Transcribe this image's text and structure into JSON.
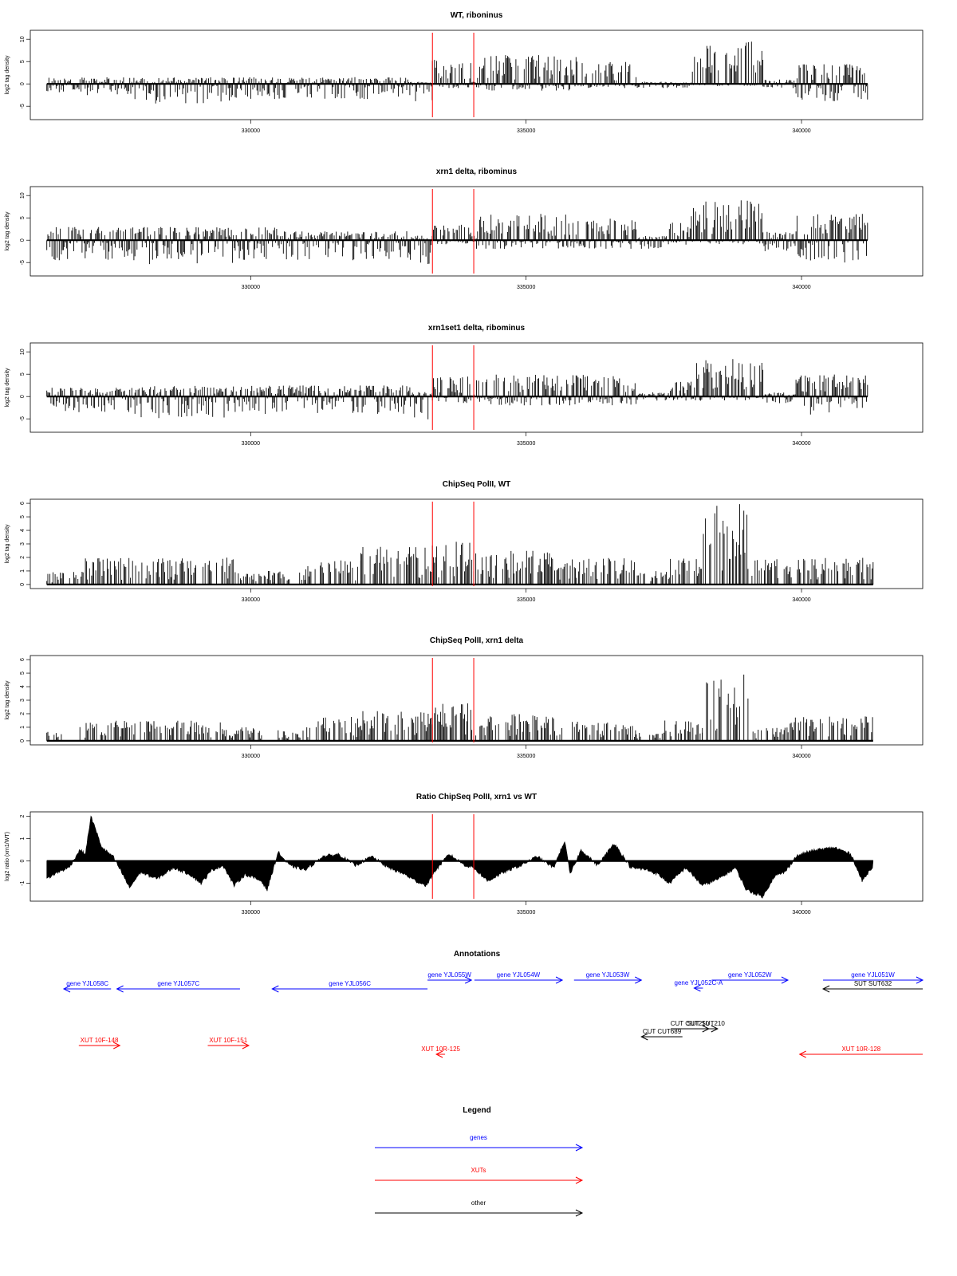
{
  "chart_data": [
    {
      "type": "bar",
      "title": "WT, riboninus",
      "ylabel": "log2 tag density",
      "ylim": [
        -8,
        12
      ],
      "yticks": [
        -5,
        0,
        5,
        10
      ],
      "xlim": [
        326300,
        341800
      ],
      "xticks": [
        330000,
        335000,
        340000
      ],
      "markers": [
        333300,
        334050
      ],
      "profile": [
        {
          "x": [
            326300,
            327900
          ],
          "lo": -2.5,
          "hi": 1.5
        },
        {
          "x": [
            327900,
            329700
          ],
          "lo": -4.5,
          "hi": 1.5
        },
        {
          "x": [
            329700,
            330500
          ],
          "lo": -3.5,
          "hi": 1.5
        },
        {
          "x": [
            330500,
            332900
          ],
          "lo": -3.5,
          "hi": 1.5
        },
        {
          "x": [
            332900,
            333300
          ],
          "lo": -4.0,
          "hi": 0.5
        },
        {
          "x": [
            333300,
            334000
          ],
          "lo": -1.0,
          "hi": 5.5
        },
        {
          "x": [
            334000,
            334100
          ],
          "lo": -0.5,
          "hi": 0.5
        },
        {
          "x": [
            334100,
            336000
          ],
          "lo": -1.5,
          "hi": 6.5
        },
        {
          "x": [
            336000,
            337000
          ],
          "lo": -1.0,
          "hi": 5.0
        },
        {
          "x": [
            337000,
            338000
          ],
          "lo": -1.0,
          "hi": 0.5
        },
        {
          "x": [
            338000,
            339300
          ],
          "lo": -0.5,
          "hi": 9.5
        },
        {
          "x": [
            339300,
            339900
          ],
          "lo": -1.0,
          "hi": 1.0
        },
        {
          "x": [
            339900,
            341200
          ],
          "lo": -4.0,
          "hi": 4.5
        }
      ]
    },
    {
      "type": "bar",
      "title": "xrn1 delta, ribominus",
      "ylabel": "log2 tag density",
      "ylim": [
        -8,
        12
      ],
      "yticks": [
        -5,
        0,
        5,
        10
      ],
      "xlim": [
        326300,
        341800
      ],
      "xticks": [
        330000,
        335000,
        340000
      ],
      "markers": [
        333300,
        334050
      ],
      "profile": [
        {
          "x": [
            326300,
            327900
          ],
          "lo": -4.5,
          "hi": 3.0
        },
        {
          "x": [
            327900,
            329700
          ],
          "lo": -5.5,
          "hi": 3.0
        },
        {
          "x": [
            329700,
            330500
          ],
          "lo": -4.5,
          "hi": 3.0
        },
        {
          "x": [
            330500,
            332900
          ],
          "lo": -4.5,
          "hi": 2.0
        },
        {
          "x": [
            332900,
            333300
          ],
          "lo": -5.5,
          "hi": 1.0
        },
        {
          "x": [
            333300,
            334000
          ],
          "lo": -1.0,
          "hi": 3.5
        },
        {
          "x": [
            334000,
            334100
          ],
          "lo": -0.5,
          "hi": 1.0
        },
        {
          "x": [
            334100,
            336000
          ],
          "lo": -2.0,
          "hi": 6.0
        },
        {
          "x": [
            336000,
            337000
          ],
          "lo": -2.0,
          "hi": 5.5
        },
        {
          "x": [
            337000,
            337600
          ],
          "lo": -2.0,
          "hi": 1.0
        },
        {
          "x": [
            337600,
            338000
          ],
          "lo": -1.0,
          "hi": 4.0
        },
        {
          "x": [
            338000,
            339300
          ],
          "lo": -1.0,
          "hi": 9.0
        },
        {
          "x": [
            339300,
            339900
          ],
          "lo": -2.5,
          "hi": 2.0
        },
        {
          "x": [
            339900,
            341200
          ],
          "lo": -5.0,
          "hi": 6.0
        }
      ]
    },
    {
      "type": "bar",
      "title": "xrn1set1 delta, ribominus",
      "ylabel": "log2 tag density",
      "ylim": [
        -8,
        12
      ],
      "yticks": [
        -5,
        0,
        5,
        10
      ],
      "xlim": [
        326300,
        341800
      ],
      "xticks": [
        330000,
        335000,
        340000
      ],
      "markers": [
        333300,
        334050
      ],
      "profile": [
        {
          "x": [
            326300,
            327900
          ],
          "lo": -3.5,
          "hi": 2.0
        },
        {
          "x": [
            327900,
            329700
          ],
          "lo": -5.0,
          "hi": 2.5
        },
        {
          "x": [
            329700,
            330500
          ],
          "lo": -4.0,
          "hi": 2.5
        },
        {
          "x": [
            330500,
            332900
          ],
          "lo": -4.0,
          "hi": 2.5
        },
        {
          "x": [
            332900,
            333300
          ],
          "lo": -5.5,
          "hi": 1.0
        },
        {
          "x": [
            333300,
            334000
          ],
          "lo": -1.5,
          "hi": 4.5
        },
        {
          "x": [
            334000,
            334100
          ],
          "lo": -0.5,
          "hi": 0.5
        },
        {
          "x": [
            334100,
            336000
          ],
          "lo": -2.0,
          "hi": 5.0
        },
        {
          "x": [
            336000,
            337000
          ],
          "lo": -2.0,
          "hi": 5.0
        },
        {
          "x": [
            337000,
            337600
          ],
          "lo": -1.0,
          "hi": 1.0
        },
        {
          "x": [
            337600,
            338000
          ],
          "lo": -1.0,
          "hi": 3.5
        },
        {
          "x": [
            338000,
            339300
          ],
          "lo": -1.0,
          "hi": 8.5
        },
        {
          "x": [
            339300,
            339900
          ],
          "lo": -1.5,
          "hi": 1.0
        },
        {
          "x": [
            339900,
            341200
          ],
          "lo": -4.5,
          "hi": 5.0
        }
      ]
    },
    {
      "type": "bar",
      "title": "ChipSeq PolII, WT",
      "ylabel": "log2 tag density",
      "ylim": [
        -0.3,
        6.3
      ],
      "yticks": [
        0,
        1,
        2,
        3,
        4,
        5,
        6
      ],
      "xlim": [
        326300,
        341800
      ],
      "xticks": [
        330000,
        335000,
        340000
      ],
      "markers": [
        333300,
        334050
      ],
      "profile": [
        {
          "x": [
            326300,
            327000
          ],
          "lo": 0,
          "hi": 1.0
        },
        {
          "x": [
            327000,
            327800
          ],
          "lo": 0,
          "hi": 2.0
        },
        {
          "x": [
            327800,
            329700
          ],
          "lo": 0,
          "hi": 2.0
        },
        {
          "x": [
            329700,
            330400
          ],
          "lo": 0,
          "hi": 1.2
        },
        {
          "x": [
            330400,
            331000
          ],
          "lo": 0,
          "hi": 1.0
        },
        {
          "x": [
            331000,
            332000
          ],
          "lo": 0,
          "hi": 1.8
        },
        {
          "x": [
            332000,
            333300
          ],
          "lo": 0,
          "hi": 2.8
        },
        {
          "x": [
            333300,
            334050
          ],
          "lo": 0,
          "hi": 3.2
        },
        {
          "x": [
            334050,
            335500
          ],
          "lo": 0,
          "hi": 2.5
        },
        {
          "x": [
            335500,
            337000
          ],
          "lo": 0,
          "hi": 2.0
        },
        {
          "x": [
            337000,
            337600
          ],
          "lo": 0,
          "hi": 1.0
        },
        {
          "x": [
            337600,
            338200
          ],
          "lo": 0,
          "hi": 2.2
        },
        {
          "x": [
            338200,
            339100
          ],
          "lo": 0,
          "hi": 6.0
        },
        {
          "x": [
            339100,
            339700
          ],
          "lo": 0,
          "hi": 2.0
        },
        {
          "x": [
            339700,
            341300
          ],
          "lo": 0,
          "hi": 2.0
        }
      ]
    },
    {
      "type": "bar",
      "title": "ChipSeq PolII, xrn1 delta",
      "ylabel": "log2 tag density",
      "ylim": [
        -0.3,
        6.3
      ],
      "yticks": [
        0,
        1,
        2,
        3,
        4,
        5,
        6
      ],
      "xlim": [
        326300,
        341800
      ],
      "xticks": [
        330000,
        335000,
        340000
      ],
      "markers": [
        333300,
        334050
      ],
      "profile": [
        {
          "x": [
            326300,
            326600
          ],
          "lo": 0,
          "hi": 0.7
        },
        {
          "x": [
            326900,
            327900
          ],
          "lo": 0,
          "hi": 1.5
        },
        {
          "x": [
            328000,
            329500
          ],
          "lo": 0,
          "hi": 1.5
        },
        {
          "x": [
            329500,
            330200
          ],
          "lo": 0,
          "hi": 1.0
        },
        {
          "x": [
            330500,
            331000
          ],
          "lo": 0,
          "hi": 0.8
        },
        {
          "x": [
            331000,
            332000
          ],
          "lo": 0,
          "hi": 1.8
        },
        {
          "x": [
            332000,
            333300
          ],
          "lo": 0,
          "hi": 2.2
        },
        {
          "x": [
            333300,
            334050
          ],
          "lo": 0,
          "hi": 2.8
        },
        {
          "x": [
            334050,
            335500
          ],
          "lo": 0,
          "hi": 2.0
        },
        {
          "x": [
            335500,
            337000
          ],
          "lo": 0,
          "hi": 1.5
        },
        {
          "x": [
            337000,
            337500
          ],
          "lo": 0,
          "hi": 0.6
        },
        {
          "x": [
            337500,
            338200
          ],
          "lo": 0,
          "hi": 1.5
        },
        {
          "x": [
            338200,
            339100
          ],
          "lo": 0,
          "hi": 5.0
        },
        {
          "x": [
            339100,
            339700
          ],
          "lo": 0,
          "hi": 1.0
        },
        {
          "x": [
            339700,
            340800
          ],
          "lo": 0,
          "hi": 1.8
        },
        {
          "x": [
            340800,
            341300
          ],
          "lo": 0,
          "hi": 1.8
        }
      ]
    },
    {
      "type": "area",
      "title": "Ratio ChipSeq PolII, xrn1 vs WT",
      "ylabel": "log2 ratio (xrn1/WT)",
      "ylim": [
        -1.8,
        2.2
      ],
      "yticks": [
        -1,
        0,
        1,
        2
      ],
      "xlim": [
        326300,
        341800
      ],
      "xticks": [
        330000,
        335000,
        340000
      ],
      "markers": [
        333300,
        334050
      ],
      "x": [
        326300,
        326500,
        326700,
        326900,
        327000,
        327100,
        327300,
        327500,
        327700,
        327800,
        328000,
        328300,
        328600,
        328900,
        329100,
        329300,
        329500,
        329700,
        329900,
        330000,
        330200,
        330300,
        330500,
        330700,
        331000,
        331300,
        331600,
        331900,
        332200,
        332500,
        332800,
        333000,
        333200,
        333300,
        333600,
        333900,
        334050,
        334300,
        334600,
        334900,
        335200,
        335500,
        335700,
        335800,
        336000,
        336300,
        336600,
        336900,
        337200,
        337400,
        337600,
        337900,
        338200,
        338500,
        338800,
        339000,
        339300,
        339500,
        339700,
        339900,
        340100,
        340300,
        340600,
        340900,
        341100,
        341300
      ],
      "y": [
        -0.8,
        -0.5,
        -0.3,
        0.5,
        0.3,
        2.0,
        0.6,
        0.2,
        -0.7,
        -1.2,
        -0.5,
        -0.8,
        -0.3,
        -0.6,
        -1.0,
        -0.4,
        -0.2,
        -1.1,
        -0.6,
        -0.7,
        -0.9,
        -1.3,
        0.4,
        -0.2,
        -0.4,
        0.2,
        0.3,
        -0.2,
        0.2,
        -0.3,
        -0.6,
        -0.9,
        -1.1,
        -0.6,
        0.3,
        -0.2,
        -0.3,
        -0.9,
        -0.5,
        -0.2,
        0.2,
        -0.3,
        0.9,
        -0.6,
        0.5,
        -0.2,
        0.8,
        -0.3,
        -0.4,
        -0.6,
        -1.0,
        -0.3,
        -1.1,
        -0.8,
        -0.3,
        -1.3,
        -1.6,
        -0.7,
        -0.5,
        0.2,
        0.4,
        0.5,
        0.6,
        0.3,
        -0.9,
        -0.2
      ]
    }
  ],
  "annotations": {
    "title": "Annotations",
    "items": [
      {
        "label": "gene YJL058C",
        "x1": 326300,
        "x2": 327950,
        "dir": "left",
        "color": "#0000ff",
        "row": 3
      },
      {
        "label": "gene YJL057C",
        "x1": 328050,
        "x2": 330150,
        "dir": "left",
        "color": "#0000ff",
        "row": 3
      },
      {
        "label": "gene YJL056C",
        "x1": 330700,
        "x2": 333350,
        "dir": "left",
        "color": "#0000ff",
        "row": 3
      },
      {
        "label": "gene YJL055W",
        "x1": 333350,
        "x2": 334100,
        "dir": "right",
        "color": "#0000ff",
        "row": 1
      },
      {
        "label": "gene YJL054W",
        "x1": 334150,
        "x2": 335650,
        "dir": "right",
        "color": "#0000ff",
        "row": 1
      },
      {
        "label": "gene YJL053W",
        "x1": 335850,
        "x2": 337000,
        "dir": "right",
        "color": "#0000ff",
        "row": 1
      },
      {
        "label": "gene YJL052C-A",
        "x1": 337900,
        "x2": 338050,
        "dir": "left",
        "color": "#0000ff",
        "row": 2
      },
      {
        "label": "gene YJL052W",
        "x1": 338200,
        "x2": 339500,
        "dir": "right",
        "color": "#0000ff",
        "row": 1
      },
      {
        "label": "gene YJL051W",
        "x1": 340100,
        "x2": 341800,
        "dir": "right",
        "color": "#0000ff",
        "row": 1
      },
      {
        "label": "SUT SUT632",
        "x1": 340100,
        "x2": 341800,
        "dir": "left",
        "color": "#000000",
        "row": 3
      },
      {
        "label": "CUT CUT210",
        "x1": 337500,
        "x2": 338150,
        "dir": "right",
        "color": "#000000",
        "row": 4
      },
      {
        "label": "SUT SUT210",
        "x1": 337900,
        "x2": 338300,
        "dir": "right",
        "color": "#000000",
        "row": 4
      },
      {
        "label": "CUT CUT689",
        "x1": 337000,
        "x2": 337700,
        "dir": "left",
        "color": "#000000",
        "row": 5
      },
      {
        "label": "XUT 10F-148",
        "x1": 327400,
        "x2": 328100,
        "dir": "right",
        "color": "#ff0000",
        "row": 6
      },
      {
        "label": "XUT 10F-151",
        "x1": 329600,
        "x2": 330300,
        "dir": "right",
        "color": "#ff0000",
        "row": 6
      },
      {
        "label": "XUT 10R-125",
        "x1": 333500,
        "x2": 333650,
        "dir": "left",
        "color": "#ff0000",
        "row": 7
      },
      {
        "label": "XUT 10R-128",
        "x1": 339700,
        "x2": 341800,
        "dir": "left",
        "color": "#ff0000",
        "row": 7
      }
    ]
  },
  "legend": {
    "title": "Legend",
    "items": [
      {
        "label": "genes",
        "color": "#0000ff"
      },
      {
        "label": "XUTs",
        "color": "#ff0000"
      },
      {
        "label": "other",
        "color": "#000000"
      }
    ]
  },
  "colors": {
    "marker": "#ff0000",
    "trace": "#000000",
    "frame": "#000000"
  }
}
